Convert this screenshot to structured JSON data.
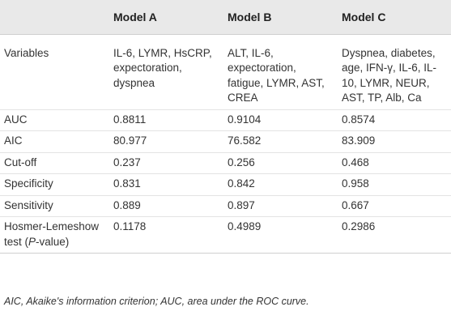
{
  "table": {
    "headers": [
      "",
      "Model A",
      "Model B",
      "Model C"
    ],
    "rows": [
      {
        "label": "Variables",
        "cells": [
          "IL-6, LYMR, HsCRP, expectoration, dyspnea",
          "ALT, IL-6, expectoration, fatigue, LYMR, AST, CREA",
          "Dyspnea, diabetes, age, IFN-γ, IL-6, IL-10, LYMR, NEUR, AST, TP, Alb, Ca"
        ]
      },
      {
        "label": "AUC",
        "cells": [
          "0.8811",
          "0.9104",
          "0.8574"
        ]
      },
      {
        "label": "AIC",
        "cells": [
          "80.977",
          "76.582",
          "83.909"
        ]
      },
      {
        "label": "Cut-off",
        "cells": [
          "0.237",
          "0.256",
          "0.468"
        ]
      },
      {
        "label": "Specificity",
        "cells": [
          "0.831",
          "0.842",
          "0.958"
        ]
      },
      {
        "label": "Sensitivity",
        "cells": [
          "0.889",
          "0.897",
          "0.667"
        ]
      },
      {
        "label_pre": "Hosmer-Lemeshow test (",
        "label_italic": "P",
        "label_post": "-value)",
        "cells": [
          "0.1178",
          "0.4989",
          "0.2986"
        ]
      }
    ]
  },
  "footnote": "AIC, Akaike's information criterion; AUC, area under the ROC curve."
}
